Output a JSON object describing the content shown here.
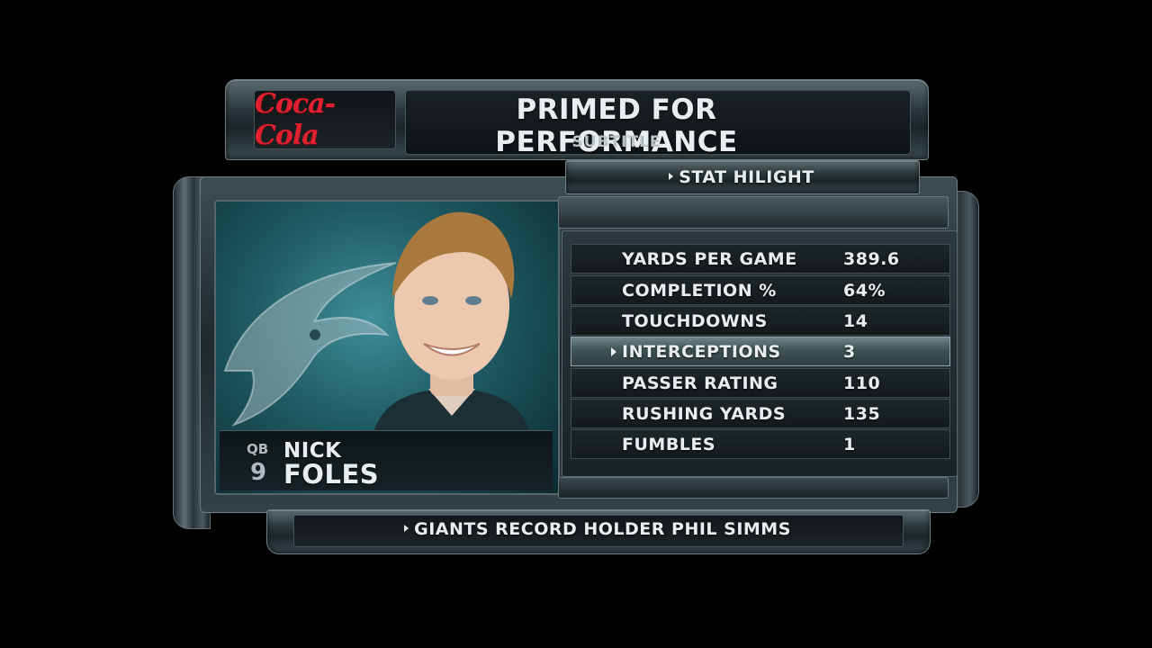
{
  "header": {
    "sponsor_logo_text": "Coca-Cola",
    "title": "PRIMED FOR PERFORMANCE",
    "subtitle": "SUBTITLE"
  },
  "hilight": {
    "label": "STAT HILIGHT"
  },
  "player": {
    "position": "QB",
    "number": "9",
    "first_name": "NICK",
    "last_name": "FOLES",
    "team_logo_icon": "eagles-logo-icon"
  },
  "stats": [
    {
      "label": "YARDS PER GAME",
      "value": "389.6",
      "active": false
    },
    {
      "label": "COMPLETION %",
      "value": "64%",
      "active": false
    },
    {
      "label": "TOUCHDOWNS",
      "value": "14",
      "active": false
    },
    {
      "label": "INTERCEPTIONS",
      "value": "3",
      "active": true
    },
    {
      "label": "PASSER RATING",
      "value": "110",
      "active": false
    },
    {
      "label": "RUSHING YARDS",
      "value": "135",
      "active": false
    },
    {
      "label": "FUMBLES",
      "value": "1",
      "active": false
    }
  ],
  "footer": {
    "text": "GIANTS RECORD HOLDER PHIL SIMMS"
  },
  "colors": {
    "sponsor_red": "#e0202e",
    "eagles_teal": "#1f5a62",
    "text": "#e8eef0"
  }
}
